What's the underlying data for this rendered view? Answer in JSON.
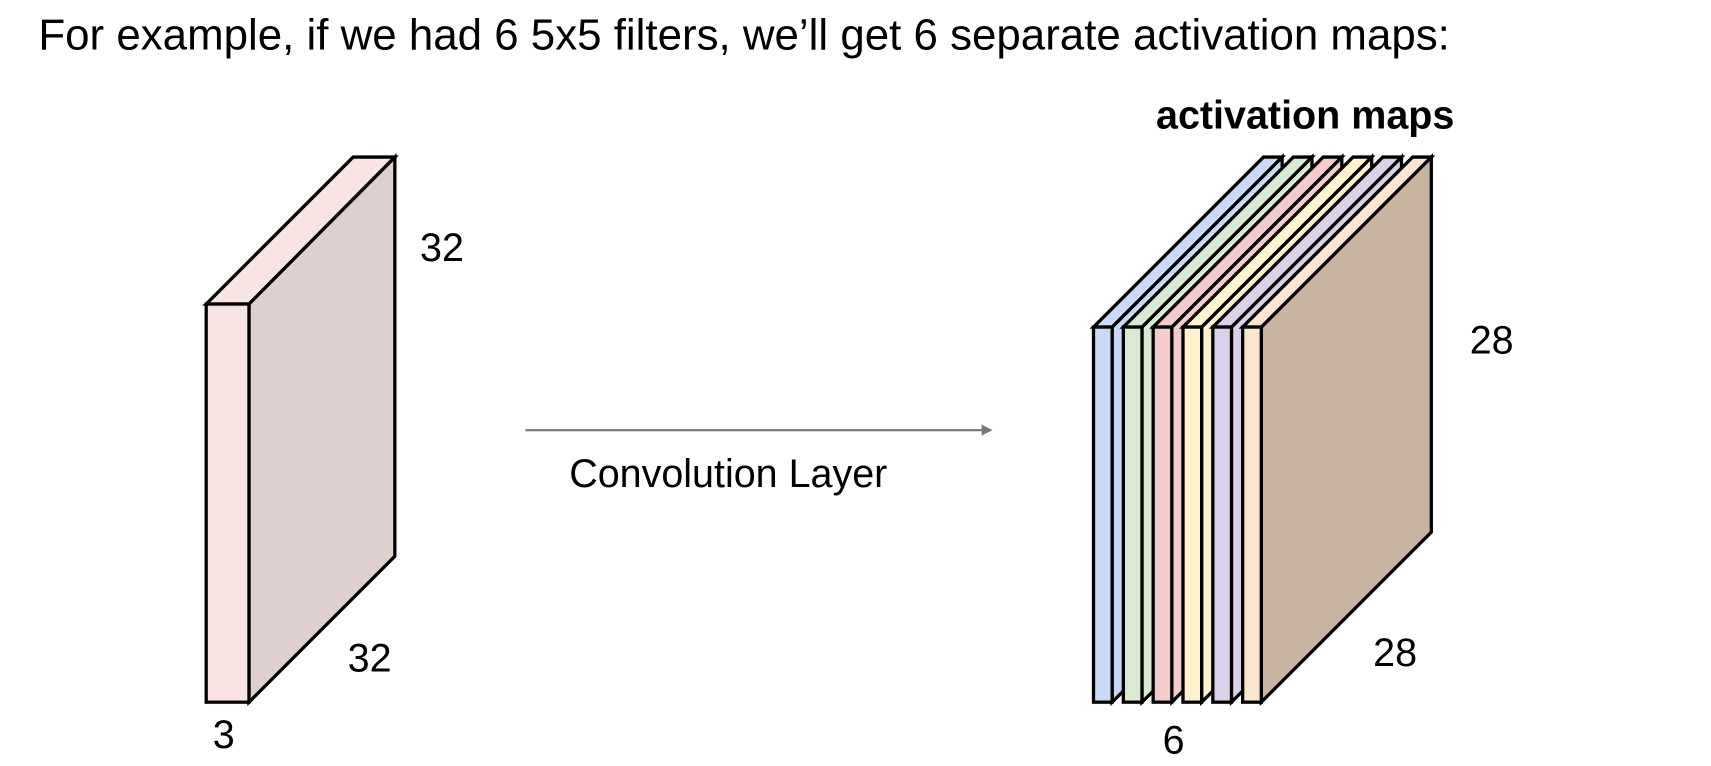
{
  "title": "For example, if we had 6 5x5 filters, we’ll get 6 separate activation maps:",
  "input_volume": {
    "height": "32",
    "width": "32",
    "depth": "3"
  },
  "operation": "Convolution Layer",
  "output_volume": {
    "title": "activation maps",
    "height": "28",
    "width": "28",
    "depth": "6"
  }
}
